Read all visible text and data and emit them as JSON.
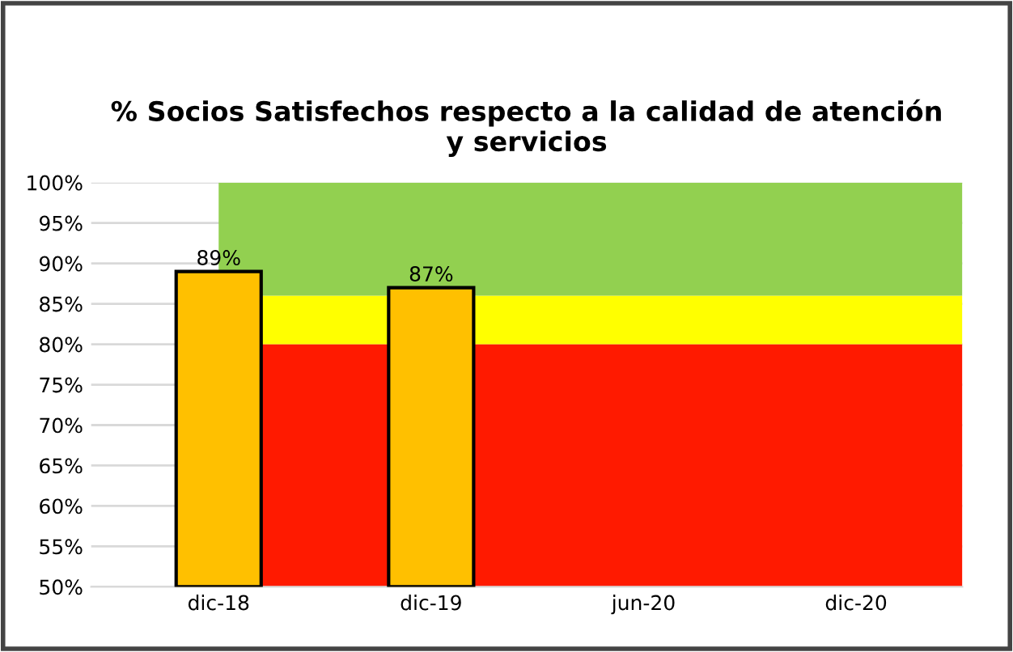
{
  "chart_data": {
    "type": "bar",
    "title": "% Socios Satisfechos respecto a la calidad de atención\ny servicios",
    "categories": [
      "dic-18",
      "dic-19",
      "jun-20",
      "dic-20"
    ],
    "values": [
      89,
      87,
      null,
      null
    ],
    "color": "#ffc000",
    "ylim": [
      50,
      100
    ],
    "yticks": [
      {
        "value": 50,
        "label": "50%"
      },
      {
        "value": 55,
        "label": "55%"
      },
      {
        "value": 60,
        "label": "60%"
      },
      {
        "value": 65,
        "label": "65%"
      },
      {
        "value": 70,
        "label": "70%"
      },
      {
        "value": 75,
        "label": "75%"
      },
      {
        "value": 80,
        "label": "80%"
      },
      {
        "value": 85,
        "label": "85%"
      },
      {
        "value": 90,
        "label": "90%"
      },
      {
        "value": 95,
        "label": "95%"
      },
      {
        "value": 100,
        "label": "100%"
      }
    ],
    "value_labels": [
      "89%",
      "87%",
      null,
      null
    ],
    "bands": [
      {
        "axis": "y",
        "from": 50,
        "to": 80,
        "color": "#ff1a00"
      },
      {
        "axis": "y",
        "from": 80,
        "to": 86,
        "color": "#ffff00"
      },
      {
        "axis": "y",
        "from": 86,
        "to": 100,
        "color": "#92d050"
      }
    ],
    "grid": "y"
  }
}
